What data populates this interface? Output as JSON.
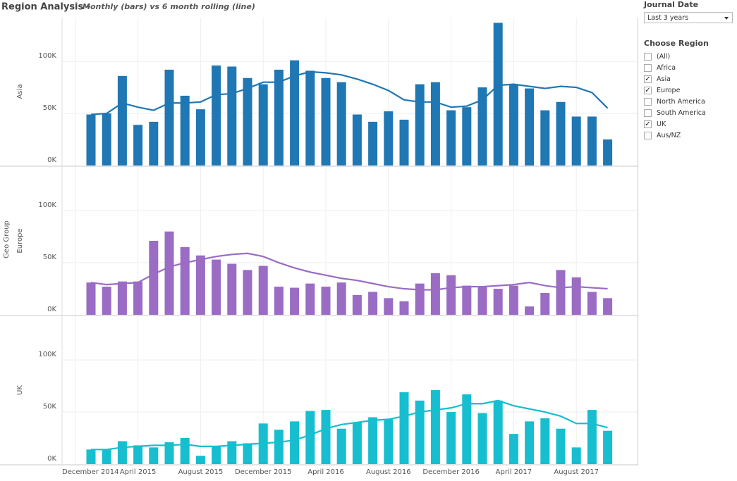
{
  "chart_data": {
    "type": "bar-line-panels",
    "title": "Region Analysis -",
    "subtitle": "Monthly (bars) vs 6 month rolling (line)",
    "y_label": "Geo Group",
    "x": [
      "2015-01",
      "2015-02",
      "2015-03",
      "2015-04",
      "2015-05",
      "2015-06",
      "2015-07",
      "2015-08",
      "2015-09",
      "2015-10",
      "2015-11",
      "2015-12",
      "2016-01",
      "2016-02",
      "2016-03",
      "2016-04",
      "2016-05",
      "2016-06",
      "2016-07",
      "2016-08",
      "2016-09",
      "2016-10",
      "2016-11",
      "2016-12",
      "2017-01",
      "2017-02",
      "2017-03",
      "2017-04",
      "2017-05",
      "2017-06",
      "2017-07",
      "2017-08",
      "2017-09",
      "2017-10"
    ],
    "xticks": [
      {
        "value": "2014-12",
        "label": "December 2014"
      },
      {
        "value": "2015-04",
        "label": "April 2015"
      },
      {
        "value": "2015-08",
        "label": "August 2015"
      },
      {
        "value": "2015-12",
        "label": "December 2015"
      },
      {
        "value": "2016-04",
        "label": "April 2016"
      },
      {
        "value": "2016-08",
        "label": "August 2016"
      },
      {
        "value": "2016-12",
        "label": "December 2016"
      },
      {
        "value": "2017-04",
        "label": "April 2017"
      },
      {
        "value": "2017-08",
        "label": "August 2017"
      }
    ],
    "ylim": [
      0,
      142000
    ],
    "yticks": [
      {
        "value": 0,
        "label": "0K"
      },
      {
        "value": 50000,
        "label": "50K"
      },
      {
        "value": 100000,
        "label": "100K"
      }
    ],
    "grid": true,
    "panels": [
      {
        "label": "Asia",
        "bar_color": "#1f77b4",
        "line_color": "#1f77b4",
        "values": [
          49000,
          50000,
          86000,
          39000,
          42000,
          92000,
          67000,
          54000,
          96000,
          95000,
          84000,
          78000,
          92000,
          101000,
          91000,
          84000,
          80000,
          49000,
          42000,
          52000,
          44000,
          78000,
          80000,
          53000,
          56000,
          75000,
          137000,
          78000,
          74000,
          53000,
          61000,
          47000,
          47000,
          25000
        ],
        "rolling": [
          49000,
          50000,
          60000,
          56000,
          53000,
          60000,
          60000,
          61000,
          68000,
          69000,
          74000,
          80000,
          80000,
          86000,
          90000,
          89000,
          87000,
          83000,
          78000,
          72000,
          63000,
          61000,
          61000,
          56000,
          57000,
          63000,
          77000,
          78000,
          76000,
          74000,
          76000,
          75000,
          70000,
          55000
        ]
      },
      {
        "label": "Europe",
        "bar_color": "#9a6cc4",
        "line_color": "#9a6cc4",
        "values": [
          31000,
          27000,
          32000,
          32000,
          71000,
          80000,
          65000,
          57000,
          53000,
          49000,
          43000,
          47000,
          27000,
          26000,
          30000,
          27000,
          31000,
          19000,
          22000,
          16000,
          13000,
          30000,
          40000,
          38000,
          28000,
          27000,
          25000,
          28000,
          8000,
          21000,
          43000,
          36000,
          22000,
          16000
        ],
        "rolling": [
          31000,
          29000,
          30000,
          31000,
          39000,
          46000,
          50000,
          53000,
          56000,
          58000,
          59000,
          56000,
          50000,
          45000,
          41000,
          38000,
          35000,
          33000,
          30000,
          27000,
          25000,
          24000,
          24000,
          26000,
          27000,
          27000,
          28000,
          29000,
          31000,
          28000,
          26000,
          27000,
          26000,
          25000
        ]
      },
      {
        "label": "UK",
        "bar_color": "#17becf",
        "line_color": "#17becf",
        "values": [
          14000,
          14000,
          22000,
          18000,
          16000,
          21000,
          25000,
          8000,
          17000,
          22000,
          20000,
          39000,
          33000,
          41000,
          51000,
          52000,
          34000,
          40000,
          45000,
          43000,
          69000,
          61000,
          71000,
          50000,
          67000,
          49000,
          61000,
          29000,
          41000,
          44000,
          34000,
          16000,
          52000,
          32000
        ],
        "rolling": [
          14000,
          14000,
          16000,
          17000,
          18000,
          18000,
          19000,
          17000,
          17000,
          18000,
          19000,
          20000,
          21000,
          23000,
          28000,
          34000,
          38000,
          40000,
          42000,
          43000,
          46000,
          50000,
          52000,
          54000,
          58000,
          58000,
          61000,
          56000,
          53000,
          50000,
          46000,
          39000,
          39000,
          35000
        ]
      }
    ]
  },
  "filters": {
    "journal_date": {
      "label": "Journal Date",
      "value": "Last 3 years"
    },
    "region": {
      "label": "Choose Region",
      "options": [
        {
          "label": "(All)",
          "checked": false
        },
        {
          "label": "Africa",
          "checked": false
        },
        {
          "label": "Asia",
          "checked": true
        },
        {
          "label": "Europe",
          "checked": true
        },
        {
          "label": "North America",
          "checked": false
        },
        {
          "label": "South America",
          "checked": false
        },
        {
          "label": "UK",
          "checked": true
        },
        {
          "label": "Aus/NZ",
          "checked": false
        }
      ]
    }
  }
}
